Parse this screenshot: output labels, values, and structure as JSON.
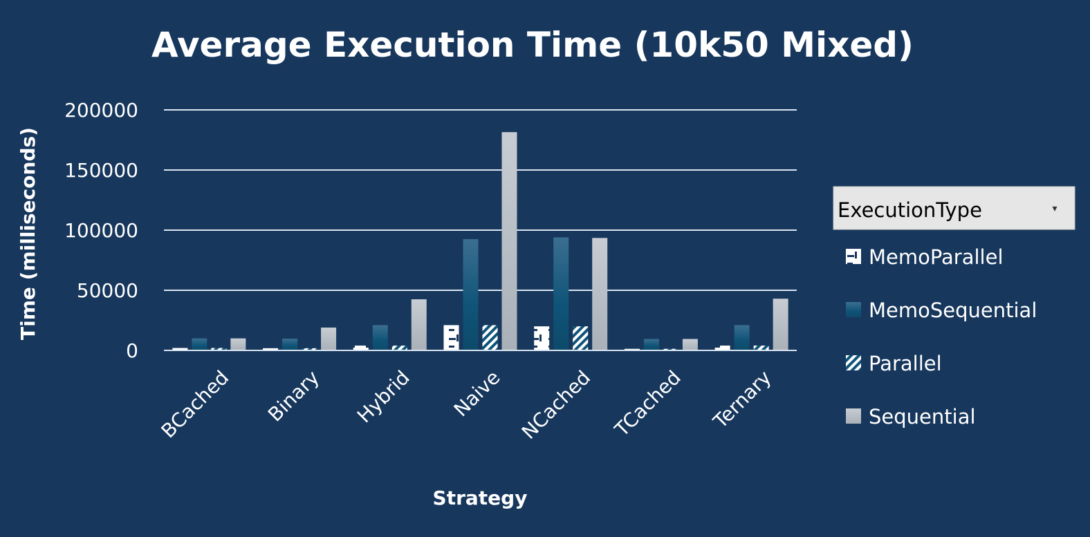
{
  "chart_data": {
    "type": "bar",
    "title": "Average Execution Time (10k50 Mixed)",
    "xlabel": "Strategy",
    "ylabel": "Time (milliseconds)",
    "ylim": [
      0,
      200000
    ],
    "yticks": [
      0,
      50000,
      100000,
      150000,
      200000
    ],
    "ytick_labels": [
      "0",
      "50000",
      "100000",
      "150000",
      "200000"
    ],
    "grid": true,
    "legend_position": "right",
    "legend_title": "ExecutionType",
    "legend_dropdown_glyph": "▾",
    "categories": [
      "BCached",
      "Binary",
      "Hybrid",
      "Naive",
      "NCached",
      "TCached",
      "Ternary"
    ],
    "series": [
      {
        "name": "MemoParallel",
        "values": [
          2000,
          1800,
          4000,
          21000,
          20000,
          1300,
          4000
        ],
        "pattern": "memo-parallel"
      },
      {
        "name": "MemoSequential",
        "values": [
          10000,
          9800,
          21000,
          92500,
          94000,
          9500,
          21000
        ],
        "pattern": "memo-sequential"
      },
      {
        "name": "Parallel",
        "values": [
          2000,
          1800,
          4000,
          21000,
          20000,
          1300,
          4000
        ],
        "pattern": "parallel"
      },
      {
        "name": "Sequential",
        "values": [
          10000,
          19000,
          42500,
          181500,
          93500,
          9500,
          43000
        ],
        "pattern": "sequential"
      }
    ]
  },
  "colors": {
    "background": "#17375d",
    "gridline": "#dbe5f1",
    "memo_parallel": "#ffffff",
    "memo_sequential": "#0f5478",
    "parallel": "#ffffff",
    "sequential": "#bfc5cc",
    "legend_header_bg": "#e6e6e6"
  },
  "icons": {
    "legend_dropdown": "chevron-down-icon"
  }
}
